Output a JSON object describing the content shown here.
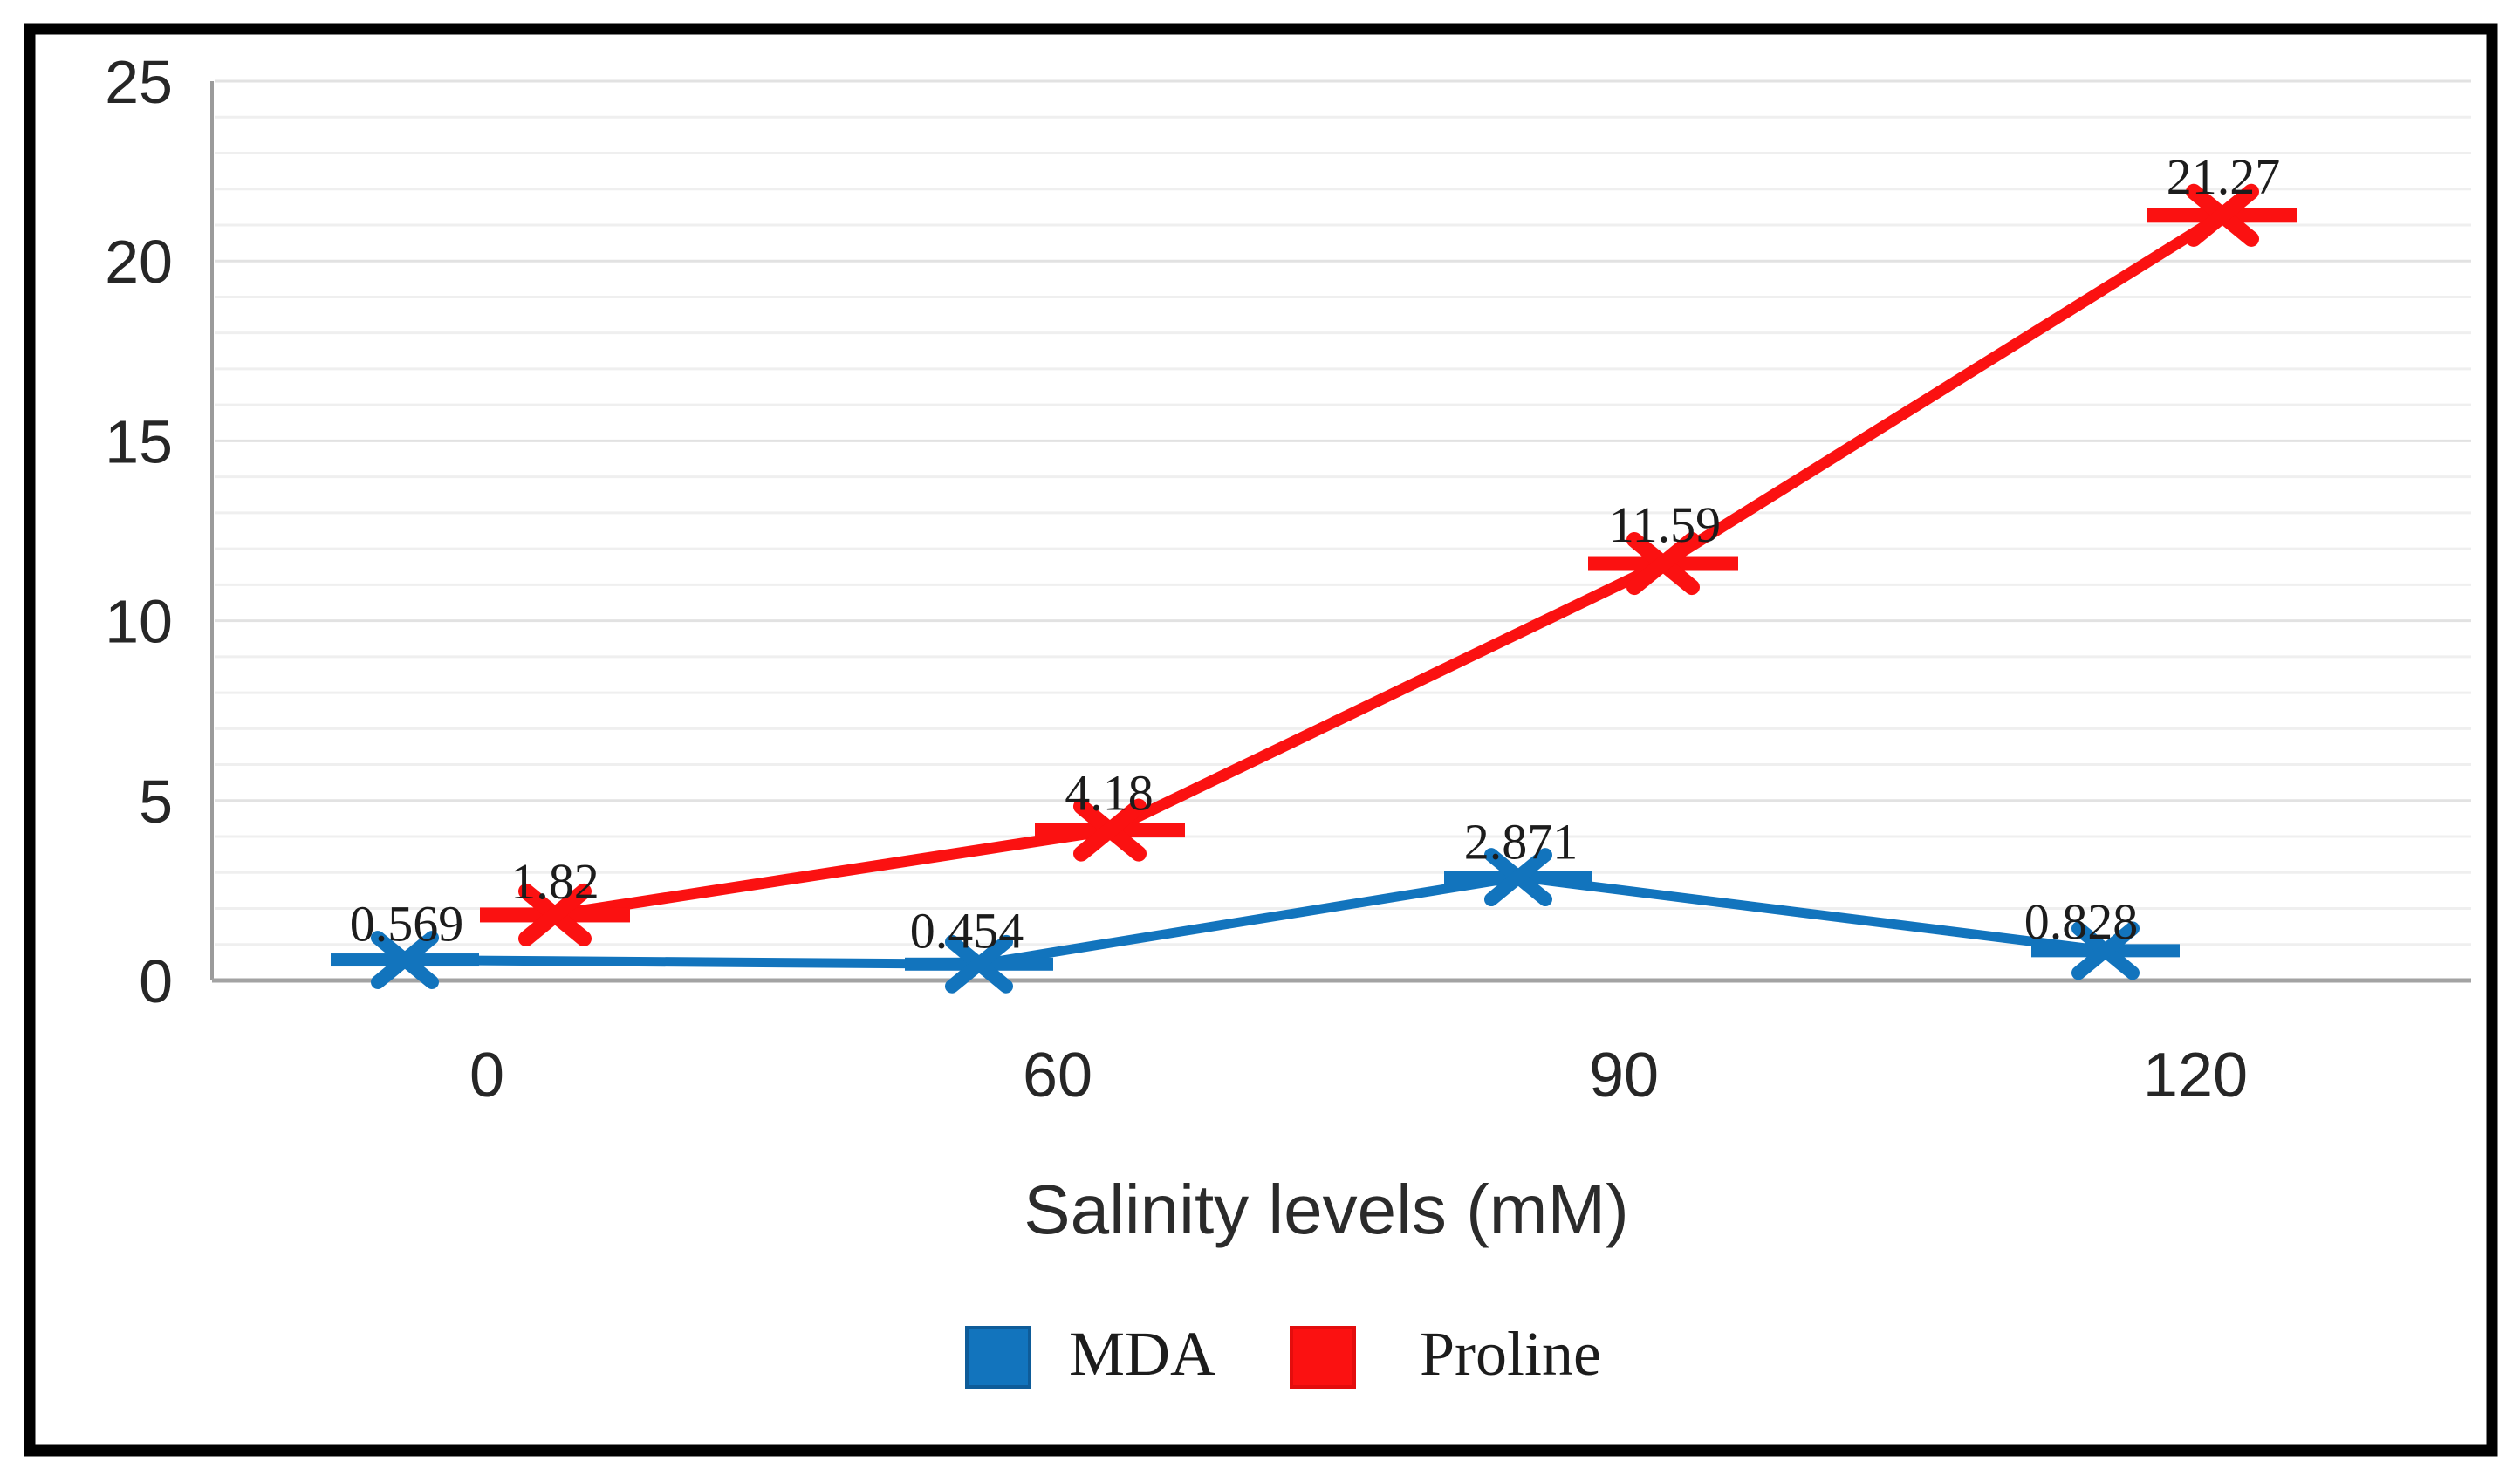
{
  "chart_data": {
    "type": "line",
    "title": "",
    "xlabel": "Salinity levels (mM)",
    "ylabel": "",
    "categories": [
      "0",
      "60",
      "90",
      "120"
    ],
    "x_values_mM": [
      0,
      60,
      90,
      120
    ],
    "y_ticks": [
      "0",
      "5",
      "10",
      "15",
      "20",
      "25"
    ],
    "ylim": [
      0,
      25
    ],
    "grid": "light horizontal gridlines every 1 unit, darker every 5",
    "legend_position": "bottom-center",
    "series": [
      {
        "name": "MDA",
        "color": "#1274bd",
        "marker": "x-with-dash",
        "values": [
          0.569,
          0.454,
          2.871,
          0.828
        ],
        "point_labels": [
          "0.569",
          "0.454",
          "2.871",
          "0.828"
        ]
      },
      {
        "name": "Proline",
        "color": "#fb1111",
        "marker": "x-with-dash",
        "values": [
          1.82,
          4.18,
          11.59,
          21.27
        ],
        "point_labels": [
          "1.82",
          "4.18",
          "11.59",
          "21.27"
        ]
      }
    ]
  },
  "legend": {
    "items": [
      {
        "label": "MDA",
        "color": "#1274bd",
        "border": "#0e5c99"
      },
      {
        "label": "Proline",
        "color": "#fb1111",
        "border": "#e30d0d"
      }
    ]
  },
  "colors": {
    "background": "#ffffff",
    "frame": "#000000",
    "axis_line": "#a3a3a3",
    "grid_minor": "#efefef",
    "grid_major": "#e2e2e2",
    "tick_text": "#262626",
    "data_label_text": "#1c1c1c"
  }
}
